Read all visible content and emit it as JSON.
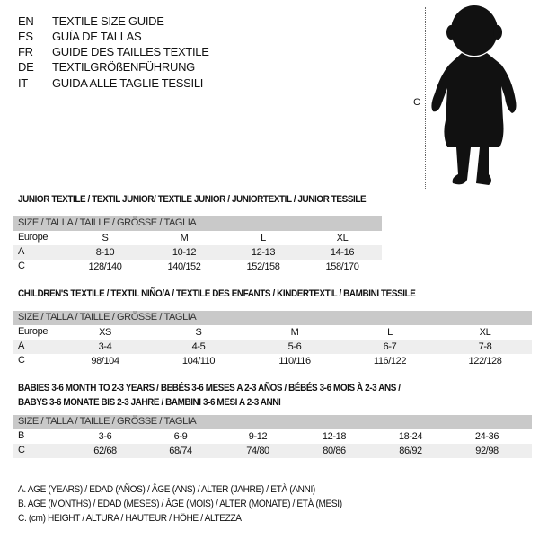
{
  "languages": [
    {
      "code": "EN",
      "name": "TEXTILE SIZE GUIDE"
    },
    {
      "code": "ES",
      "name": "GUÍA DE TALLAS"
    },
    {
      "code": "FR",
      "name": "GUIDE DES TAILLES TEXTILE"
    },
    {
      "code": "DE",
      "name": "TEXTILGRÖßENFÜHRUNG"
    },
    {
      "code": "IT",
      "name": "GUIDA ALLE TAGLIE TESSILI"
    }
  ],
  "figure": {
    "height_marker": "C",
    "icon": "baby-silhouette"
  },
  "sections": [
    {
      "title": "JUNIOR TEXTILE / TEXTIL JUNIOR/ TEXTILE JUNIOR / JUNIORTEXTIL / JUNIOR TESSILE",
      "header": "SIZE / TALLA / TAILLE / GRÖSSE / TAGLIA",
      "rows": [
        {
          "label": "Europe",
          "values": [
            "S",
            "M",
            "L",
            "XL"
          ]
        },
        {
          "label": "A",
          "values": [
            "8-10",
            "10-12",
            "12-13",
            "14-16"
          ]
        },
        {
          "label": "C",
          "values": [
            "128/140",
            "140/152",
            "152/158",
            "158/170"
          ]
        }
      ]
    },
    {
      "title": "CHILDREN'S TEXTILE / TEXTIL NIÑO/A / TEXTILE DES ENFANTS / KINDERTEXTIL / BAMBINI TESSILE",
      "header": "SIZE / TALLA / TAILLE / GRÖSSE / TAGLIA",
      "rows": [
        {
          "label": "Europe",
          "values": [
            "XS",
            "S",
            "M",
            "L",
            "XL"
          ]
        },
        {
          "label": "A",
          "values": [
            "3-4",
            "4-5",
            "5-6",
            "6-7",
            "7-8"
          ]
        },
        {
          "label": "C",
          "values": [
            "98/104",
            "104/110",
            "110/116",
            "116/122",
            "122/128"
          ]
        }
      ]
    },
    {
      "title": "BABIES 3-6 MONTH TO 2-3 YEARS / BEBÉS 3-6 MESES A 2-3 AÑOS / BÉBÉS 3-6 MOIS À 2-3 ANS /",
      "title2": "BABYS 3-6 MONATE BIS 2-3 JAHRE / BAMBINI 3-6 MESI A 2-3 ANNI",
      "header": "SIZE / TALLA / TAILLE / GRÖSSE / TAGLIA",
      "rows": [
        {
          "label": "B",
          "values": [
            "3-6",
            "6-9",
            "9-12",
            "12-18",
            "18-24",
            "24-36"
          ]
        },
        {
          "label": "C",
          "values": [
            "62/68",
            "68/74",
            "74/80",
            "80/86",
            "86/92",
            "92/98"
          ]
        }
      ]
    }
  ],
  "legend": [
    "A. AGE (YEARS) / EDAD (AÑOS) / ÂGE (ANS) / ALTER (JAHRE) / ETÀ (ANNI)",
    "B. AGE (MONTHS) / EDAD (MESES) / ÂGE (MOIS) / ALTER (MONATE) / ETÀ (MESI)",
    "C. (cm) HEIGHT / ALTURA / HAUTEUR / HÖHE / ALTEZZA"
  ],
  "colors": {
    "header_bg": "#c9c9c9",
    "alt_row_bg": "#eeeeee"
  }
}
